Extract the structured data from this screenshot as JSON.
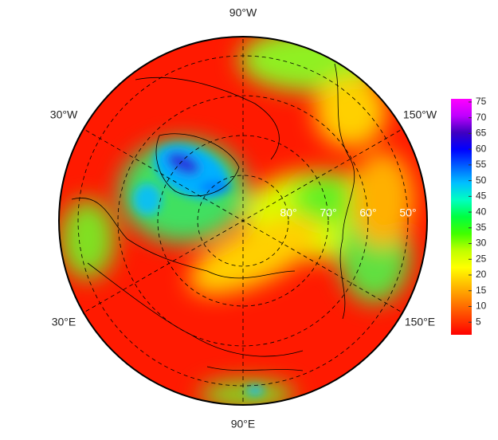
{
  "map": {
    "meridian_labels": {
      "top": "90°W",
      "upper_left": "30°W",
      "upper_right": "150°W",
      "lower_left": "30°E",
      "lower_right": "150°E",
      "bottom": "90°E"
    },
    "latitude_labels": [
      "80°",
      "70°",
      "60°",
      "50°"
    ],
    "colorbar": {
      "lim": [
        1,
        76
      ],
      "ticks": [
        5,
        10,
        15,
        20,
        25,
        30,
        35,
        40,
        45,
        50,
        55,
        60,
        65,
        70,
        75
      ],
      "colors": [
        "#ff0000",
        "#ff4000",
        "#ff8000",
        "#ffc000",
        "#ffff00",
        "#c0ff00",
        "#40ff00",
        "#00ff40",
        "#00ffc0",
        "#00c0ff",
        "#0060ff",
        "#0000ff",
        "#4000c0",
        "#c000ff",
        "#ff00ff"
      ]
    }
  }
}
